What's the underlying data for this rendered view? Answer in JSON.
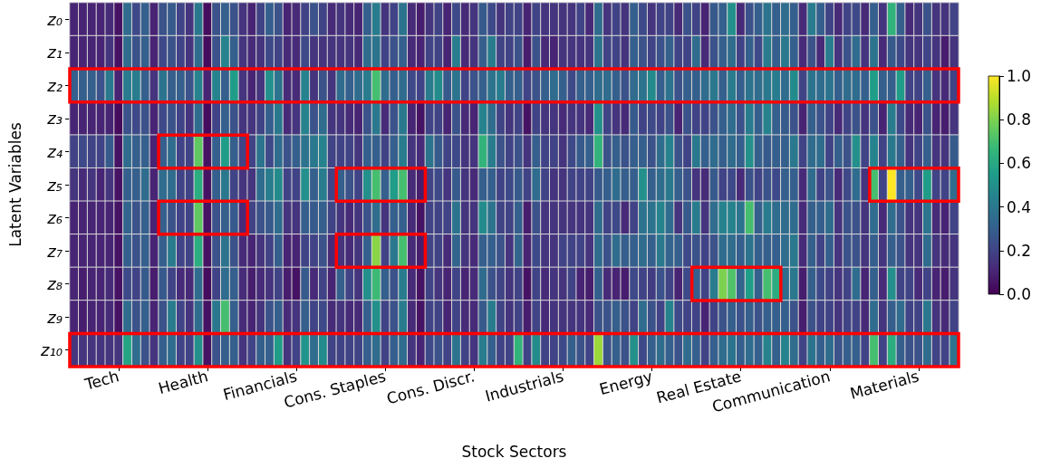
{
  "chart_data": {
    "type": "heatmap",
    "xlabel": "Stock Sectors",
    "ylabel": "Latent Variables",
    "categories": [
      null,
      null,
      null,
      null,
      null,
      "Tech",
      null,
      null,
      null,
      null,
      null,
      null,
      null,
      null,
      null,
      "Health",
      null,
      null,
      null,
      null,
      null,
      null,
      null,
      null,
      null,
      "Financials",
      null,
      null,
      null,
      null,
      null,
      null,
      null,
      null,
      null,
      "Cons. Staples",
      null,
      null,
      null,
      null,
      null,
      null,
      null,
      null,
      null,
      "Cons. Discr.",
      null,
      null,
      null,
      null,
      null,
      null,
      null,
      null,
      null,
      "Industrials",
      null,
      null,
      null,
      null,
      null,
      null,
      null,
      null,
      null,
      "Energy",
      null,
      null,
      null,
      null,
      null,
      null,
      null,
      null,
      null,
      "Real Estate",
      null,
      null,
      null,
      null,
      null,
      null,
      null,
      null,
      null,
      "Communication",
      null,
      null,
      null,
      null,
      null,
      null,
      null,
      null,
      null,
      "Materials",
      null,
      null,
      null,
      null
    ],
    "y_categories": [
      "z₀",
      "z₁",
      "z₂",
      "z₃",
      "z₄",
      "z₅",
      "z₆",
      "z₇",
      "z₈",
      "z₉",
      "z₁₀"
    ],
    "cells": [
      [
        0.1,
        0.1,
        0.1,
        0.1,
        0.12,
        0.05,
        0.35,
        0.22,
        0.3,
        0.1,
        0.25,
        0.28,
        0.2,
        0.15,
        0.4,
        0.03,
        0.25,
        0.3,
        0.25,
        0.15,
        0.1,
        0.2,
        0.3,
        0.25,
        0.1,
        0.12,
        0.2,
        0.25,
        0.2,
        0.12,
        0.15,
        0.12,
        0.1,
        0.3,
        0.42,
        0.15,
        0.2,
        0.38,
        0.12,
        0.08,
        0.15,
        0.2,
        0.1,
        0.22,
        0.12,
        0.15,
        0.28,
        0.22,
        0.15,
        0.2,
        0.2,
        0.1,
        0.2,
        0.15,
        0.15,
        0.15,
        0.15,
        0.2,
        0.12,
        0.35,
        0.15,
        0.2,
        0.15,
        0.3,
        0.22,
        0.15,
        0.2,
        0.2,
        0.12,
        0.25,
        0.2,
        0.1,
        0.28,
        0.3,
        0.5,
        0.12,
        0.25,
        0.3,
        0.38,
        0.3,
        0.35,
        0.3,
        0.12,
        0.42,
        0.3,
        0.2,
        0.12,
        0.2,
        0.22,
        0.12,
        0.3,
        0.15,
        0.65,
        0.3,
        0.12,
        0.15,
        0.25,
        0.15,
        0.15,
        0.2
      ],
      [
        0.1,
        0.1,
        0.1,
        0.1,
        0.15,
        0.05,
        0.35,
        0.25,
        0.3,
        0.1,
        0.22,
        0.25,
        0.2,
        0.15,
        0.35,
        0.03,
        0.25,
        0.45,
        0.3,
        0.15,
        0.12,
        0.15,
        0.22,
        0.2,
        0.12,
        0.12,
        0.22,
        0.15,
        0.15,
        0.15,
        0.15,
        0.15,
        0.12,
        0.35,
        0.38,
        0.2,
        0.25,
        0.3,
        0.12,
        0.1,
        0.2,
        0.2,
        0.1,
        0.42,
        0.12,
        0.15,
        0.3,
        0.42,
        0.2,
        0.2,
        0.25,
        0.08,
        0.25,
        0.12,
        0.1,
        0.15,
        0.15,
        0.15,
        0.15,
        0.38,
        0.2,
        0.2,
        0.15,
        0.3,
        0.25,
        0.2,
        0.25,
        0.3,
        0.2,
        0.2,
        0.35,
        0.12,
        0.25,
        0.3,
        0.35,
        0.2,
        0.3,
        0.22,
        0.42,
        0.3,
        0.4,
        0.3,
        0.12,
        0.25,
        0.12,
        0.42,
        0.15,
        0.25,
        0.35,
        0.15,
        0.38,
        0.12,
        0.28,
        0.22,
        0.15,
        0.15,
        0.2,
        0.15,
        0.08,
        0.15
      ],
      [
        0.3,
        0.3,
        0.3,
        0.25,
        0.4,
        0.1,
        0.42,
        0.42,
        0.3,
        0.15,
        0.38,
        0.3,
        0.3,
        0.25,
        0.45,
        0.1,
        0.45,
        0.3,
        0.55,
        0.15,
        0.1,
        0.15,
        0.5,
        0.38,
        0.12,
        0.12,
        0.45,
        0.15,
        0.25,
        0.15,
        0.35,
        0.3,
        0.35,
        0.42,
        0.7,
        0.35,
        0.3,
        0.35,
        0.22,
        0.2,
        0.42,
        0.48,
        0.28,
        0.38,
        0.2,
        0.25,
        0.3,
        0.38,
        0.42,
        0.3,
        0.3,
        0.2,
        0.25,
        0.3,
        0.35,
        0.3,
        0.22,
        0.3,
        0.3,
        0.35,
        0.35,
        0.3,
        0.25,
        0.35,
        0.38,
        0.48,
        0.3,
        0.38,
        0.25,
        0.3,
        0.3,
        0.35,
        0.4,
        0.3,
        0.42,
        0.3,
        0.38,
        0.35,
        0.4,
        0.42,
        0.35,
        0.48,
        0.2,
        0.38,
        0.35,
        0.38,
        0.3,
        0.35,
        0.35,
        0.3,
        0.55,
        0.3,
        0.3,
        0.55,
        0.2,
        0.2,
        0.3,
        0.15,
        0.12,
        0.2
      ],
      [
        0.1,
        0.1,
        0.1,
        0.1,
        0.1,
        0.03,
        0.25,
        0.22,
        0.25,
        0.1,
        0.22,
        0.25,
        0.2,
        0.15,
        0.35,
        0.03,
        0.2,
        0.3,
        0.25,
        0.15,
        0.15,
        0.2,
        0.3,
        0.4,
        0.12,
        0.15,
        0.45,
        0.25,
        0.35,
        0.15,
        0.15,
        0.12,
        0.1,
        0.25,
        0.4,
        0.12,
        0.25,
        0.4,
        0.1,
        0.05,
        0.2,
        0.2,
        0.1,
        0.25,
        0.12,
        0.1,
        0.45,
        0.35,
        0.2,
        0.15,
        0.2,
        0.05,
        0.2,
        0.15,
        0.15,
        0.12,
        0.15,
        0.15,
        0.12,
        0.5,
        0.2,
        0.15,
        0.12,
        0.28,
        0.2,
        0.22,
        0.2,
        0.25,
        0.1,
        0.25,
        0.2,
        0.2,
        0.25,
        0.3,
        0.35,
        0.25,
        0.42,
        0.3,
        0.45,
        0.3,
        0.28,
        0.25,
        0.1,
        0.3,
        0.25,
        0.2,
        0.12,
        0.2,
        0.25,
        0.15,
        0.25,
        0.1,
        0.42,
        0.22,
        0.12,
        0.1,
        0.25,
        0.1,
        0.08,
        0.15
      ],
      [
        0.2,
        0.22,
        0.2,
        0.2,
        0.28,
        0.05,
        0.35,
        0.3,
        0.3,
        0.1,
        0.3,
        0.35,
        0.2,
        0.2,
        0.75,
        0.05,
        0.3,
        0.55,
        0.3,
        0.2,
        0.2,
        0.38,
        0.22,
        0.35,
        0.25,
        0.3,
        0.38,
        0.4,
        0.45,
        0.2,
        0.2,
        0.2,
        0.15,
        0.3,
        0.3,
        0.2,
        0.3,
        0.42,
        0.15,
        0.12,
        0.38,
        0.28,
        0.2,
        0.22,
        0.15,
        0.15,
        0.65,
        0.42,
        0.25,
        0.2,
        0.25,
        0.15,
        0.3,
        0.2,
        0.2,
        0.15,
        0.22,
        0.28,
        0.3,
        0.65,
        0.25,
        0.3,
        0.25,
        0.3,
        0.3,
        0.25,
        0.35,
        0.45,
        0.25,
        0.2,
        0.4,
        0.3,
        0.35,
        0.3,
        0.35,
        0.3,
        0.5,
        0.3,
        0.28,
        0.3,
        0.3,
        0.4,
        0.2,
        0.35,
        0.35,
        0.2,
        0.3,
        0.25,
        0.5,
        0.2,
        0.45,
        0.2,
        0.4,
        0.3,
        0.15,
        0.2,
        0.3,
        0.15,
        0.15,
        0.28
      ],
      [
        0.15,
        0.12,
        0.15,
        0.1,
        0.15,
        0.05,
        0.3,
        0.3,
        0.35,
        0.1,
        0.35,
        0.35,
        0.2,
        0.2,
        0.62,
        0.05,
        0.3,
        0.4,
        0.2,
        0.15,
        0.15,
        0.35,
        0.42,
        0.48,
        0.2,
        0.2,
        0.5,
        0.3,
        0.42,
        0.2,
        0.3,
        0.25,
        0.2,
        0.5,
        0.7,
        0.3,
        0.55,
        0.7,
        0.12,
        0.08,
        0.2,
        0.22,
        0.15,
        0.28,
        0.15,
        0.12,
        0.3,
        0.3,
        0.2,
        0.22,
        0.28,
        0.2,
        0.35,
        0.2,
        0.15,
        0.15,
        0.2,
        0.2,
        0.2,
        0.28,
        0.3,
        0.35,
        0.3,
        0.3,
        0.5,
        0.3,
        0.35,
        0.4,
        0.3,
        0.25,
        0.15,
        0.12,
        0.28,
        0.2,
        0.22,
        0.12,
        0.25,
        0.2,
        0.25,
        0.22,
        0.3,
        0.3,
        0.12,
        0.35,
        0.2,
        0.25,
        0.12,
        0.22,
        0.35,
        0.15,
        0.7,
        0.2,
        1.0,
        0.3,
        0.3,
        0.22,
        0.55,
        0.2,
        0.2,
        0.35
      ],
      [
        0.1,
        0.1,
        0.1,
        0.1,
        0.1,
        0.05,
        0.32,
        0.25,
        0.3,
        0.1,
        0.3,
        0.25,
        0.2,
        0.2,
        0.75,
        0.05,
        0.25,
        0.3,
        0.28,
        0.12,
        0.2,
        0.25,
        0.28,
        0.35,
        0.15,
        0.15,
        0.3,
        0.28,
        0.3,
        0.2,
        0.15,
        0.12,
        0.15,
        0.25,
        0.35,
        0.15,
        0.3,
        0.3,
        0.12,
        0.05,
        0.2,
        0.2,
        0.2,
        0.38,
        0.15,
        0.15,
        0.48,
        0.38,
        0.2,
        0.2,
        0.3,
        0.08,
        0.25,
        0.15,
        0.15,
        0.15,
        0.15,
        0.15,
        0.15,
        0.35,
        0.2,
        0.22,
        0.12,
        0.2,
        0.38,
        0.38,
        0.45,
        0.35,
        0.15,
        0.28,
        0.42,
        0.15,
        0.35,
        0.45,
        0.45,
        0.38,
        0.7,
        0.3,
        0.42,
        0.35,
        0.35,
        0.35,
        0.12,
        0.3,
        0.3,
        0.35,
        0.15,
        0.25,
        0.25,
        0.15,
        0.35,
        0.12,
        0.35,
        0.25,
        0.15,
        0.15,
        0.38,
        0.12,
        0.1,
        0.2
      ],
      [
        0.1,
        0.1,
        0.1,
        0.1,
        0.1,
        0.05,
        0.3,
        0.25,
        0.3,
        0.1,
        0.3,
        0.42,
        0.2,
        0.2,
        0.62,
        0.05,
        0.25,
        0.38,
        0.25,
        0.12,
        0.1,
        0.15,
        0.2,
        0.3,
        0.1,
        0.1,
        0.2,
        0.2,
        0.25,
        0.12,
        0.15,
        0.12,
        0.15,
        0.3,
        0.82,
        0.2,
        0.4,
        0.7,
        0.12,
        0.08,
        0.2,
        0.2,
        0.12,
        0.32,
        0.15,
        0.12,
        0.3,
        0.3,
        0.25,
        0.15,
        0.32,
        0.1,
        0.22,
        0.15,
        0.15,
        0.2,
        0.2,
        0.2,
        0.15,
        0.35,
        0.25,
        0.35,
        0.3,
        0.3,
        0.35,
        0.3,
        0.4,
        0.32,
        0.3,
        0.22,
        0.25,
        0.2,
        0.25,
        0.35,
        0.35,
        0.3,
        0.38,
        0.3,
        0.3,
        0.3,
        0.35,
        0.4,
        0.12,
        0.3,
        0.2,
        0.3,
        0.15,
        0.25,
        0.25,
        0.15,
        0.3,
        0.15,
        0.3,
        0.25,
        0.15,
        0.15,
        0.35,
        0.15,
        0.12,
        0.15
      ],
      [
        0.1,
        0.08,
        0.1,
        0.1,
        0.12,
        0.05,
        0.22,
        0.2,
        0.28,
        0.08,
        0.28,
        0.2,
        0.12,
        0.12,
        0.35,
        0.03,
        0.2,
        0.35,
        0.3,
        0.12,
        0.08,
        0.12,
        0.15,
        0.2,
        0.08,
        0.05,
        0.28,
        0.12,
        0.2,
        0.1,
        0.3,
        0.2,
        0.15,
        0.5,
        0.68,
        0.3,
        0.25,
        0.42,
        0.12,
        0.05,
        0.2,
        0.15,
        0.1,
        0.2,
        0.1,
        0.12,
        0.35,
        0.25,
        0.2,
        0.15,
        0.2,
        0.05,
        0.2,
        0.12,
        0.15,
        0.15,
        0.2,
        0.1,
        0.08,
        0.3,
        0.12,
        0.1,
        0.08,
        0.22,
        0.2,
        0.18,
        0.25,
        0.2,
        0.1,
        0.22,
        0.3,
        0.2,
        0.42,
        0.8,
        0.72,
        0.32,
        0.55,
        0.3,
        0.7,
        0.62,
        0.35,
        0.4,
        0.08,
        0.3,
        0.22,
        0.2,
        0.15,
        0.2,
        0.35,
        0.1,
        0.3,
        0.12,
        0.5,
        0.2,
        0.2,
        0.12,
        0.2,
        0.1,
        0.08,
        0.15
      ],
      [
        0.1,
        0.08,
        0.1,
        0.1,
        0.12,
        0.05,
        0.35,
        0.25,
        0.3,
        0.1,
        0.25,
        0.42,
        0.2,
        0.15,
        0.35,
        0.05,
        0.4,
        0.7,
        0.3,
        0.12,
        0.1,
        0.15,
        0.25,
        0.3,
        0.12,
        0.15,
        0.3,
        0.2,
        0.22,
        0.12,
        0.15,
        0.12,
        0.12,
        0.3,
        0.5,
        0.2,
        0.25,
        0.42,
        0.12,
        0.05,
        0.2,
        0.2,
        0.1,
        0.2,
        0.12,
        0.12,
        0.28,
        0.42,
        0.2,
        0.15,
        0.2,
        0.08,
        0.2,
        0.12,
        0.15,
        0.15,
        0.15,
        0.15,
        0.12,
        0.25,
        0.25,
        0.3,
        0.25,
        0.2,
        0.35,
        0.25,
        0.2,
        0.45,
        0.22,
        0.2,
        0.2,
        0.1,
        0.2,
        0.25,
        0.3,
        0.25,
        0.3,
        0.25,
        0.3,
        0.3,
        0.3,
        0.25,
        0.08,
        0.25,
        0.2,
        0.2,
        0.15,
        0.2,
        0.2,
        0.12,
        0.35,
        0.15,
        0.3,
        0.35,
        0.2,
        0.2,
        0.4,
        0.15,
        0.12,
        0.2
      ],
      [
        0.15,
        0.15,
        0.15,
        0.15,
        0.15,
        0.15,
        0.58,
        0.35,
        0.25,
        0.15,
        0.3,
        0.35,
        0.2,
        0.2,
        0.5,
        0.05,
        0.25,
        0.3,
        0.3,
        0.15,
        0.2,
        0.3,
        0.3,
        0.55,
        0.15,
        0.2,
        0.52,
        0.35,
        0.48,
        0.2,
        0.2,
        0.2,
        0.2,
        0.3,
        0.35,
        0.2,
        0.3,
        0.35,
        0.15,
        0.1,
        0.22,
        0.25,
        0.2,
        0.38,
        0.2,
        0.15,
        0.42,
        0.3,
        0.2,
        0.2,
        0.65,
        0.2,
        0.48,
        0.2,
        0.2,
        0.22,
        0.3,
        0.25,
        0.2,
        0.85,
        0.25,
        0.3,
        0.25,
        0.5,
        0.22,
        0.3,
        0.35,
        0.3,
        0.25,
        0.35,
        0.3,
        0.2,
        0.3,
        0.35,
        0.38,
        0.3,
        0.35,
        0.3,
        0.45,
        0.3,
        0.45,
        0.35,
        0.2,
        0.38,
        0.3,
        0.35,
        0.25,
        0.3,
        0.3,
        0.2,
        0.7,
        0.2,
        0.62,
        0.3,
        0.25,
        0.25,
        0.35,
        0.2,
        0.2,
        0.38
      ]
    ],
    "clim": [
      0,
      1
    ],
    "cticks": [
      {
        "value": 0,
        "label": "0.0"
      },
      {
        "value": 0.2,
        "label": "0.2"
      },
      {
        "value": 0.4,
        "label": "0.4"
      },
      {
        "value": 0.6,
        "label": "0.6"
      },
      {
        "value": 0.8,
        "label": "0.8"
      },
      {
        "value": 1,
        "label": "1.0"
      }
    ]
  }
}
